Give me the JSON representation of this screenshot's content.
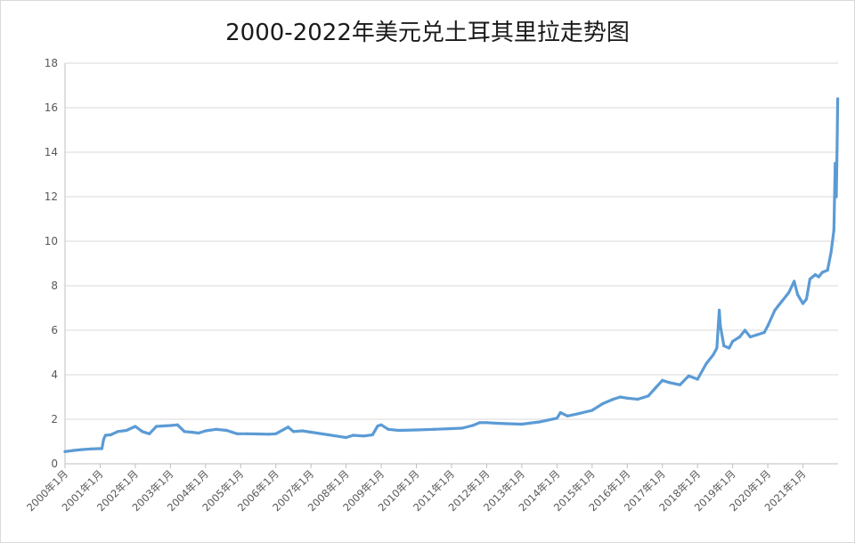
{
  "chart_data": {
    "type": "line",
    "title": "2000-2022年美元兑土耳其里拉走势图",
    "xlabel": "",
    "ylabel": "",
    "ylim": [
      0,
      18
    ],
    "yticks": [
      0,
      2,
      4,
      6,
      8,
      10,
      12,
      14,
      16,
      18
    ],
    "grid": true,
    "legend": "none",
    "line_color": "#5b9bd5",
    "xlim": [
      2000.0,
      2022.0
    ],
    "x_tick_positions": [
      2000,
      2001,
      2002,
      2003,
      2004,
      2005,
      2006,
      2007,
      2008,
      2009,
      2010,
      2011,
      2012,
      2013,
      2014,
      2015,
      2016,
      2017,
      2018,
      2019,
      2020,
      2021
    ],
    "x_tick_labels": [
      "2000年1月",
      "2001年1月",
      "2002年1月",
      "2003年1月",
      "2004年1月",
      "2005年1月",
      "2006年1月",
      "2007年1月",
      "2008年1月",
      "2009年1月",
      "2010年1月",
      "2011年1月",
      "2012年1月",
      "2013年1月",
      "2014年1月",
      "2015年1月",
      "2016年1月",
      "2017年1月",
      "2018年1月",
      "2019年1月",
      "2020年1月",
      "2021年1月"
    ],
    "x": [
      2000.0,
      2000.25,
      2000.5,
      2000.75,
      2000.95,
      2001.05,
      2001.1,
      2001.15,
      2001.3,
      2001.5,
      2001.75,
      2002.0,
      2002.2,
      2002.4,
      2002.6,
      2002.8,
      2003.0,
      2003.2,
      2003.4,
      2003.6,
      2003.8,
      2004.0,
      2004.3,
      2004.6,
      2004.9,
      2005.2,
      2005.5,
      2005.8,
      2006.0,
      2006.35,
      2006.5,
      2006.75,
      2007.0,
      2007.5,
      2008.0,
      2008.2,
      2008.5,
      2008.75,
      2008.9,
      2009.0,
      2009.2,
      2009.5,
      2010.0,
      2010.5,
      2011.0,
      2011.3,
      2011.6,
      2011.8,
      2012.0,
      2012.3,
      2012.6,
      2013.0,
      2013.5,
      2014.0,
      2014.1,
      2014.3,
      2014.6,
      2015.0,
      2015.3,
      2015.6,
      2015.8,
      2016.0,
      2016.3,
      2016.6,
      2016.8,
      2017.0,
      2017.2,
      2017.5,
      2017.75,
      2018.0,
      2018.25,
      2018.45,
      2018.55,
      2018.62,
      2018.65,
      2018.75,
      2018.9,
      2019.0,
      2019.2,
      2019.35,
      2019.5,
      2019.7,
      2019.9,
      2020.0,
      2020.2,
      2020.3,
      2020.4,
      2020.6,
      2020.75,
      2020.85,
      2021.0,
      2021.1,
      2021.2,
      2021.35,
      2021.45,
      2021.55,
      2021.7,
      2021.8,
      2021.88,
      2021.92,
      2021.95,
      2021.97,
      2021.99
    ],
    "values": [
      0.55,
      0.6,
      0.64,
      0.67,
      0.68,
      0.68,
      1.1,
      1.28,
      1.3,
      1.45,
      1.5,
      1.68,
      1.45,
      1.35,
      1.68,
      1.7,
      1.72,
      1.75,
      1.45,
      1.42,
      1.38,
      1.48,
      1.55,
      1.5,
      1.35,
      1.35,
      1.34,
      1.33,
      1.35,
      1.65,
      1.45,
      1.48,
      1.42,
      1.3,
      1.18,
      1.28,
      1.25,
      1.3,
      1.7,
      1.75,
      1.55,
      1.5,
      1.52,
      1.55,
      1.58,
      1.6,
      1.72,
      1.85,
      1.85,
      1.82,
      1.8,
      1.78,
      1.88,
      2.05,
      2.3,
      2.15,
      2.25,
      2.4,
      2.7,
      2.9,
      3.0,
      2.95,
      2.9,
      3.05,
      3.4,
      3.75,
      3.65,
      3.55,
      3.95,
      3.8,
      4.5,
      4.9,
      5.2,
      6.9,
      6.2,
      5.3,
      5.2,
      5.5,
      5.7,
      6.0,
      5.7,
      5.8,
      5.9,
      6.2,
      6.9,
      7.1,
      7.3,
      7.7,
      8.2,
      7.6,
      7.2,
      7.4,
      8.3,
      8.5,
      8.4,
      8.6,
      8.7,
      9.5,
      10.5,
      13.5,
      12.0,
      14.0,
      16.4
    ]
  }
}
